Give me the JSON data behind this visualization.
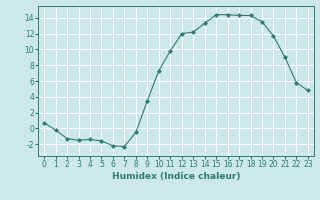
{
  "x": [
    0,
    1,
    2,
    3,
    4,
    5,
    6,
    7,
    8,
    9,
    10,
    11,
    12,
    13,
    14,
    15,
    16,
    17,
    18,
    19,
    20,
    21,
    22,
    23
  ],
  "y": [
    0.7,
    -0.2,
    -1.3,
    -1.5,
    -1.4,
    -1.6,
    -2.2,
    -2.3,
    -0.5,
    3.5,
    7.3,
    9.8,
    12.0,
    12.2,
    13.3,
    14.4,
    14.4,
    14.3,
    14.3,
    13.5,
    11.7,
    9.0,
    5.8,
    4.8
  ],
  "line_color": "#2d7d6e",
  "bg_color": "#cce8e8",
  "grid_color": "#b0d8d8",
  "xlabel": "Humidex (Indice chaleur)",
  "ylim": [
    -3.5,
    15.5
  ],
  "yticks": [
    -2,
    0,
    2,
    4,
    6,
    8,
    10,
    12,
    14
  ],
  "xticks": [
    0,
    1,
    2,
    3,
    4,
    5,
    6,
    7,
    8,
    9,
    10,
    11,
    12,
    13,
    14,
    15,
    16,
    17,
    18,
    19,
    20,
    21,
    22,
    23
  ],
  "label_fontsize": 6.5,
  "tick_fontsize": 5.5
}
